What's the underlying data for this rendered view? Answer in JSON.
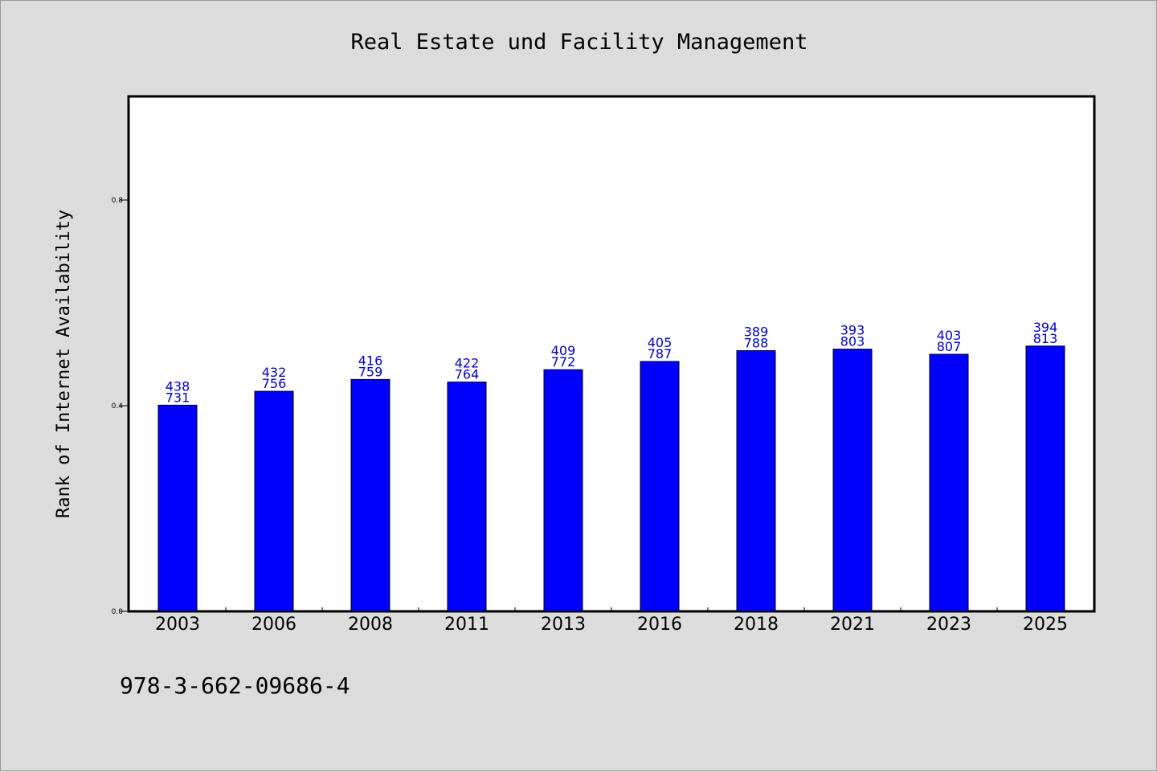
{
  "chart_data": {
    "type": "bar",
    "title": "Real Estate und Facility Management",
    "xlabel": "",
    "ylabel": "Rank of Internet Availability",
    "categories": [
      "2003",
      "2006",
      "2008",
      "2011",
      "2013",
      "2016",
      "2018",
      "2021",
      "2023",
      "2025"
    ],
    "values": [
      0.401,
      0.428,
      0.451,
      0.446,
      0.47,
      0.486,
      0.507,
      0.51,
      0.5,
      0.516
    ],
    "labels": [
      [
        "438",
        "731"
      ],
      [
        "432",
        "756"
      ],
      [
        "416",
        "759"
      ],
      [
        "422",
        "764"
      ],
      [
        "409",
        "772"
      ],
      [
        "405",
        "787"
      ],
      [
        "389",
        "788"
      ],
      [
        "393",
        "803"
      ],
      [
        "403",
        "807"
      ],
      [
        "394",
        "813"
      ]
    ],
    "ylim": [
      0,
      1.0
    ],
    "yticks": [
      "0.0",
      "0.4",
      "0.8"
    ],
    "grid": false,
    "colors": {
      "bar": "#0000ff",
      "label": "#0000cc",
      "background": "#dcdcdc",
      "plot": "#ffffff"
    }
  },
  "footer": {
    "isbn": "978-3-662-09686-4"
  }
}
